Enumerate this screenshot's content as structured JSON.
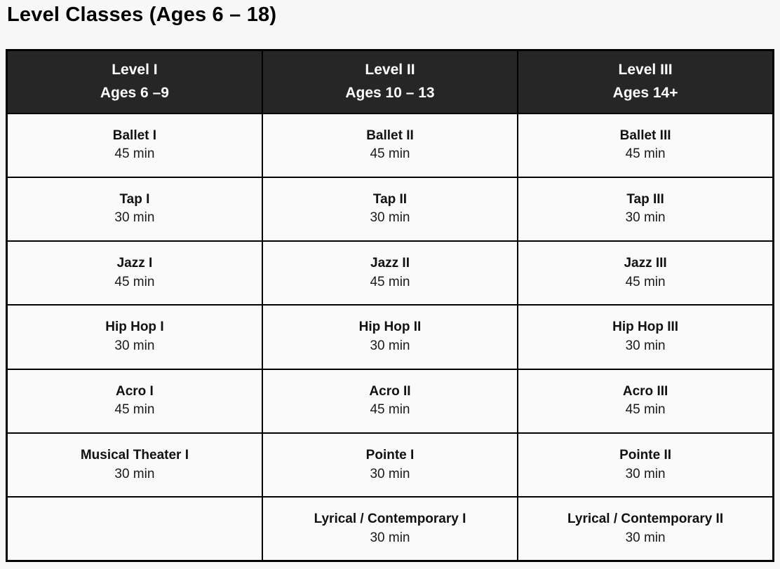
{
  "page_title": "Level Classes (Ages 6 – 18)",
  "colors": {
    "page_bg": "#f7f7f8",
    "header_bg": "#262626",
    "header_text": "#ffffff",
    "cell_bg": "#fafafa",
    "border": "#000000"
  },
  "table": {
    "columns": [
      {
        "level": "Level I",
        "ages": "Ages 6 –9"
      },
      {
        "level": "Level II",
        "ages": "Ages 10 – 13"
      },
      {
        "level": "Level III",
        "ages": "Ages 14+"
      }
    ],
    "rows": [
      [
        {
          "name": "Ballet I",
          "duration": "45 min"
        },
        {
          "name": "Ballet II",
          "duration": "45 min"
        },
        {
          "name": "Ballet III",
          "duration": "45 min"
        }
      ],
      [
        {
          "name": "Tap I",
          "duration": "30 min"
        },
        {
          "name": "Tap II",
          "duration": "30 min"
        },
        {
          "name": "Tap III",
          "duration": "30 min"
        }
      ],
      [
        {
          "name": "Jazz I",
          "duration": "45 min"
        },
        {
          "name": "Jazz II",
          "duration": "45 min"
        },
        {
          "name": "Jazz III",
          "duration": "45 min"
        }
      ],
      [
        {
          "name": "Hip Hop I",
          "duration": "30 min"
        },
        {
          "name": "Hip Hop II",
          "duration": "30 min"
        },
        {
          "name": "Hip Hop III",
          "duration": "30 min"
        }
      ],
      [
        {
          "name": "Acro I",
          "duration": "45 min"
        },
        {
          "name": "Acro II",
          "duration": "45 min"
        },
        {
          "name": "Acro III",
          "duration": "45 min"
        }
      ],
      [
        {
          "name": "Musical Theater I",
          "duration": "30 min"
        },
        {
          "name": "Pointe I",
          "duration": "30 min"
        },
        {
          "name": "Pointe II",
          "duration": "30 min"
        }
      ],
      [
        null,
        {
          "name": "Lyrical / Contemporary I",
          "duration": "30 min"
        },
        {
          "name": "Lyrical / Contemporary II",
          "duration": "30 min"
        }
      ]
    ]
  }
}
